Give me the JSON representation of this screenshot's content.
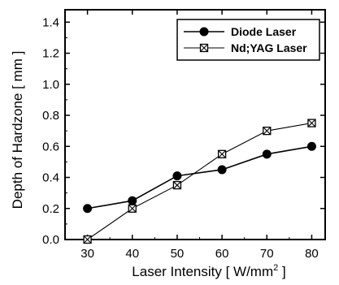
{
  "chart_data": {
    "type": "line",
    "xlabel": "Laser Intensity [ W/mm",
    "xlabel_sup": "2",
    "xlabel_tail": " ]",
    "ylabel": "Depth of Hardzone [ mm ]",
    "xlim": [
      25,
      83
    ],
    "ylim": [
      0.0,
      1.48
    ],
    "xticks": [
      30,
      40,
      50,
      60,
      70,
      80
    ],
    "yticks": [
      0.0,
      0.2,
      0.4,
      0.6,
      0.8,
      1.0,
      1.2,
      1.4
    ],
    "ytick_labels": [
      "0.0",
      "0.2",
      "0.4",
      "0.6",
      "0.8",
      "1.0",
      "1.2",
      "1.4"
    ],
    "legend_position": "top-right",
    "series": [
      {
        "name": "Diode Laser",
        "marker": "filled-circle",
        "x": [
          30,
          40,
          50,
          60,
          70,
          80
        ],
        "y": [
          0.2,
          0.25,
          0.41,
          0.45,
          0.55,
          0.6
        ]
      },
      {
        "name": "Nd;YAG Laser",
        "marker": "crossed-square",
        "x": [
          30,
          40,
          50,
          60,
          70,
          80
        ],
        "y": [
          0.0,
          0.2,
          0.35,
          0.55,
          0.7,
          0.75
        ]
      }
    ]
  }
}
